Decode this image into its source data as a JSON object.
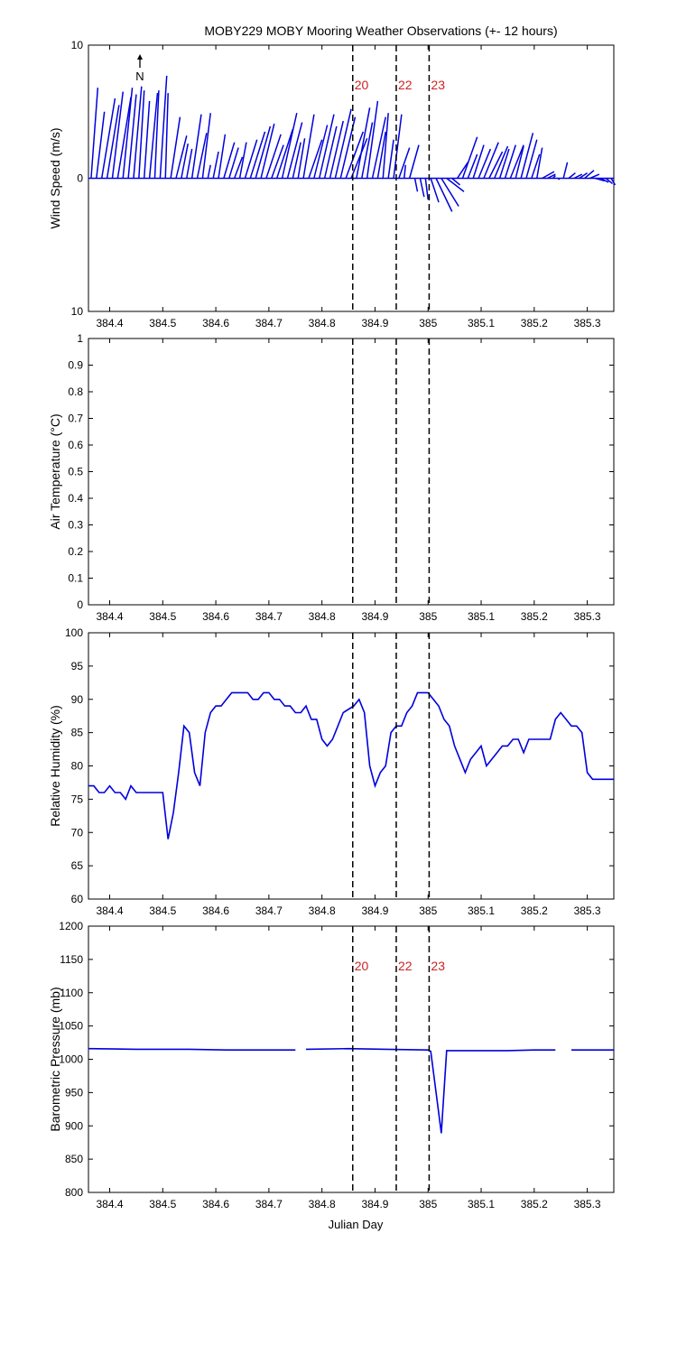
{
  "colors": {
    "series": "#0000dd",
    "event_label": "#cc2222",
    "event_line": "#000000"
  },
  "chart_data": {
    "title": "MOBY229 MOBY Mooring Weather Observations (+- 12 hours)",
    "xlabel": "Julian Day",
    "xlim": [
      384.36,
      385.35
    ],
    "xticks": [
      "384.4",
      "384.5",
      "384.6",
      "384.7",
      "384.8",
      "384.9",
      "385",
      "385.1",
      "385.2",
      "385.3"
    ],
    "xtick_values": [
      384.4,
      384.5,
      384.6,
      384.7,
      384.8,
      384.9,
      385.0,
      385.1,
      385.2,
      385.3
    ],
    "events": [
      {
        "label": "20",
        "x": 384.858
      },
      {
        "label": "22",
        "x": 384.94
      },
      {
        "label": "23",
        "x": 385.002
      }
    ],
    "panels": [
      {
        "id": "wind",
        "type": "vector",
        "ylabel": "Wind Speed (m/s)",
        "ylim": [
          -10,
          10
        ],
        "yticks": [
          "10",
          "0",
          "10"
        ],
        "ytick_values": [
          10,
          0,
          -10
        ],
        "north_label": "N",
        "show_event_labels": true,
        "vectors": [
          [
            384.365,
            0.5,
            6.8
          ],
          [
            384.375,
            0.6,
            5.0
          ],
          [
            384.385,
            1.0,
            6.0
          ],
          [
            384.395,
            0.9,
            5.5
          ],
          [
            384.405,
            0.8,
            6.5
          ],
          [
            384.415,
            1.0,
            6.1
          ],
          [
            384.425,
            0.7,
            6.8
          ],
          [
            384.435,
            0.6,
            6.3
          ],
          [
            384.445,
            0.6,
            6.9
          ],
          [
            384.455,
            0.4,
            6.6
          ],
          [
            384.465,
            0.4,
            5.8
          ],
          [
            384.475,
            0.6,
            6.4
          ],
          [
            384.485,
            0.3,
            6.6
          ],
          [
            384.495,
            0.5,
            7.7
          ],
          [
            384.505,
            0.2,
            6.4
          ],
          [
            384.515,
            0.7,
            4.6
          ],
          [
            384.525,
            0.8,
            3.2
          ],
          [
            384.535,
            0.5,
            2.6
          ],
          [
            384.545,
            0.4,
            2.2
          ],
          [
            384.555,
            0.7,
            4.8
          ],
          [
            384.565,
            0.7,
            3.4
          ],
          [
            384.575,
            0.6,
            4.9
          ],
          [
            384.585,
            0.2,
            1.0
          ],
          [
            384.595,
            0.4,
            2.0
          ],
          [
            384.605,
            0.5,
            3.3
          ],
          [
            384.615,
            0.8,
            2.7
          ],
          [
            384.625,
            0.7,
            2.3
          ],
          [
            384.635,
            0.6,
            1.6
          ],
          [
            384.645,
            0.5,
            2.7
          ],
          [
            384.655,
            0.9,
            2.9
          ],
          [
            384.665,
            1.1,
            3.5
          ],
          [
            384.675,
            1.1,
            3.9
          ],
          [
            384.685,
            1.0,
            4.1
          ],
          [
            384.695,
            1.1,
            3.3
          ],
          [
            384.705,
            0.9,
            2.5
          ],
          [
            384.715,
            1.2,
            3.7
          ],
          [
            384.725,
            1.1,
            4.9
          ],
          [
            384.735,
            1.1,
            4.2
          ],
          [
            384.745,
            0.6,
            2.7
          ],
          [
            384.755,
            0.5,
            3.0
          ],
          [
            384.765,
            0.8,
            4.8
          ],
          [
            384.775,
            1.0,
            2.9
          ],
          [
            384.785,
            1.0,
            4.0
          ],
          [
            384.795,
            1.1,
            4.8
          ],
          [
            384.805,
            0.9,
            3.9
          ],
          [
            384.815,
            1.0,
            4.3
          ],
          [
            384.825,
            1.2,
            5.2
          ],
          [
            384.835,
            1.1,
            4.6
          ],
          [
            384.845,
            1.3,
            3.5
          ],
          [
            384.855,
            1.2,
            3.0
          ],
          [
            384.865,
            1.0,
            5.3
          ],
          [
            384.875,
            0.8,
            4.2
          ],
          [
            384.885,
            0.8,
            5.8
          ],
          [
            384.895,
            1.0,
            4.6
          ],
          [
            384.905,
            0.6,
            3.5
          ],
          [
            384.915,
            0.4,
            4.9
          ],
          [
            384.925,
            0.4,
            2.9
          ],
          [
            384.935,
            0.6,
            4.8
          ],
          [
            384.945,
            0.8,
            2.3
          ],
          [
            384.955,
            0.1,
            1.0
          ],
          [
            384.965,
            0.7,
            2.5
          ],
          [
            384.975,
            0.2,
            -1.0
          ],
          [
            384.985,
            0.3,
            -1.4
          ],
          [
            384.995,
            0.2,
            -1.6
          ],
          [
            385.005,
            0.6,
            -1.8
          ],
          [
            385.015,
            1.2,
            -2.5
          ],
          [
            385.025,
            1.3,
            -2.1
          ],
          [
            385.035,
            1.3,
            -1.0
          ],
          [
            385.045,
            0.6,
            -0.5
          ],
          [
            385.055,
            0.8,
            1.2
          ],
          [
            385.065,
            1.1,
            3.1
          ],
          [
            385.075,
            0.7,
            1.8
          ],
          [
            385.085,
            0.8,
            2.5
          ],
          [
            385.095,
            0.9,
            2.2
          ],
          [
            385.105,
            1.1,
            2.7
          ],
          [
            385.115,
            1.0,
            2.0
          ],
          [
            385.125,
            1.0,
            2.4
          ],
          [
            385.135,
            0.7,
            2.2
          ],
          [
            385.145,
            0.8,
            2.5
          ],
          [
            385.155,
            1.0,
            2.5
          ],
          [
            385.165,
            0.6,
            2.4
          ],
          [
            385.175,
            0.9,
            3.4
          ],
          [
            385.185,
            0.8,
            2.9
          ],
          [
            385.195,
            0.6,
            1.8
          ],
          [
            385.205,
            0.4,
            2.3
          ],
          [
            385.215,
            0.9,
            0.5
          ],
          [
            385.225,
            0.6,
            0.3
          ],
          [
            385.235,
            0.2,
            0.2
          ],
          [
            385.245,
            0.1,
            -0.1
          ],
          [
            385.255,
            0.3,
            1.2
          ],
          [
            385.265,
            0.5,
            0.4
          ],
          [
            385.275,
            0.6,
            0.3
          ],
          [
            385.285,
            0.6,
            0.4
          ],
          [
            385.295,
            0.7,
            0.6
          ],
          [
            385.305,
            0.7,
            0.3
          ],
          [
            385.315,
            0.7,
            -0.2
          ],
          [
            385.325,
            0.6,
            -0.3
          ],
          [
            385.335,
            0.5,
            -0.4
          ],
          [
            385.345,
            0.3,
            -0.5
          ]
        ]
      },
      {
        "id": "airtemp",
        "type": "line",
        "ylabel": "Air Temperature (°C)",
        "ylim": [
          0,
          1
        ],
        "yticks": [
          "0",
          "0.1",
          "0.2",
          "0.3",
          "0.4",
          "0.5",
          "0.6",
          "0.7",
          "0.8",
          "0.9",
          "1"
        ],
        "ytick_values": [
          0,
          0.1,
          0.2,
          0.3,
          0.4,
          0.5,
          0.6,
          0.7,
          0.8,
          0.9,
          1.0
        ],
        "show_event_labels": false,
        "segments": []
      },
      {
        "id": "rh",
        "type": "line",
        "ylabel": "Relative Humidity (%)",
        "ylim": [
          60,
          100
        ],
        "yticks": [
          "60",
          "65",
          "70",
          "75",
          "80",
          "85",
          "90",
          "95",
          "100"
        ],
        "ytick_values": [
          60,
          65,
          70,
          75,
          80,
          85,
          90,
          95,
          100
        ],
        "show_event_labels": false,
        "segments": [
          [
            [
              384.36,
              77
            ],
            [
              384.37,
              77
            ],
            [
              384.38,
              76
            ],
            [
              384.39,
              76
            ],
            [
              384.4,
              77
            ],
            [
              384.41,
              76
            ],
            [
              384.42,
              76
            ],
            [
              384.43,
              75
            ],
            [
              384.44,
              77
            ],
            [
              384.45,
              76
            ],
            [
              384.46,
              76
            ],
            [
              384.47,
              76
            ],
            [
              384.48,
              76
            ],
            [
              384.49,
              76
            ],
            [
              384.5,
              76
            ],
            [
              384.51,
              69
            ],
            [
              384.52,
              73
            ],
            [
              384.53,
              79
            ],
            [
              384.54,
              86
            ],
            [
              384.55,
              85
            ],
            [
              384.56,
              79
            ],
            [
              384.57,
              77
            ],
            [
              384.58,
              85
            ],
            [
              384.59,
              88
            ],
            [
              384.6,
              89
            ],
            [
              384.61,
              89
            ],
            [
              384.62,
              90
            ],
            [
              384.63,
              91
            ],
            [
              384.64,
              91
            ],
            [
              384.65,
              91
            ],
            [
              384.66,
              91
            ],
            [
              384.67,
              90
            ],
            [
              384.68,
              90
            ],
            [
              384.69,
              91
            ],
            [
              384.7,
              91
            ],
            [
              384.71,
              90
            ],
            [
              384.72,
              90
            ],
            [
              384.73,
              89
            ],
            [
              384.74,
              89
            ],
            [
              384.75,
              88
            ],
            [
              384.76,
              88
            ],
            [
              384.77,
              89
            ],
            [
              384.78,
              87
            ],
            [
              384.79,
              87
            ],
            [
              384.8,
              84
            ],
            [
              384.81,
              83
            ],
            [
              384.82,
              84
            ],
            [
              384.83,
              86
            ],
            [
              384.84,
              88
            ],
            [
              384.86,
              89
            ],
            [
              384.87,
              90
            ],
            [
              384.88,
              88
            ],
            [
              384.89,
              80
            ],
            [
              384.9,
              77
            ],
            [
              384.91,
              79
            ],
            [
              384.92,
              80
            ],
            [
              384.93,
              85
            ],
            [
              384.94,
              86
            ],
            [
              384.95,
              86
            ],
            [
              384.96,
              88
            ],
            [
              384.97,
              89
            ],
            [
              384.98,
              91
            ],
            [
              384.99,
              91
            ],
            [
              385.0,
              91
            ],
            [
              385.01,
              90
            ],
            [
              385.02,
              89
            ],
            [
              385.03,
              87
            ],
            [
              385.04,
              86
            ],
            [
              385.05,
              83
            ],
            [
              385.06,
              81
            ],
            [
              385.07,
              79
            ],
            [
              385.08,
              81
            ],
            [
              385.09,
              82
            ],
            [
              385.1,
              83
            ],
            [
              385.11,
              80
            ],
            [
              385.12,
              81
            ],
            [
              385.13,
              82
            ],
            [
              385.14,
              83
            ],
            [
              385.15,
              83
            ],
            [
              385.16,
              84
            ],
            [
              385.17,
              84
            ],
            [
              385.18,
              82
            ],
            [
              385.19,
              84
            ],
            [
              385.2,
              84
            ],
            [
              385.21,
              84
            ],
            [
              385.22,
              84
            ],
            [
              385.23,
              84
            ],
            [
              385.24,
              87
            ],
            [
              385.25,
              88
            ],
            [
              385.26,
              87
            ],
            [
              385.27,
              86
            ],
            [
              385.28,
              86
            ],
            [
              385.29,
              85
            ],
            [
              385.3,
              79
            ],
            [
              385.31,
              78
            ],
            [
              385.35,
              78
            ]
          ]
        ]
      },
      {
        "id": "pressure",
        "type": "line",
        "ylabel": "Barometric Pressure (mb)",
        "ylim": [
          800,
          1200
        ],
        "yticks": [
          "800",
          "850",
          "900",
          "950",
          "1000",
          "1050",
          "1100",
          "1150",
          "1200"
        ],
        "ytick_values": [
          800,
          850,
          900,
          950,
          1000,
          1050,
          1100,
          1150,
          1200
        ],
        "show_event_labels": true,
        "segments": [
          [
            [
              384.36,
              1016
            ],
            [
              384.45,
              1015
            ],
            [
              384.55,
              1015
            ],
            [
              384.62,
              1014
            ],
            [
              384.68,
              1014
            ],
            [
              384.75,
              1014
            ]
          ],
          [
            [
              384.77,
              1015
            ],
            [
              384.85,
              1016
            ],
            [
              384.92,
              1015
            ],
            [
              385.0,
              1014
            ],
            [
              385.005,
              1012
            ],
            [
              385.025,
              889
            ],
            [
              385.035,
              1013
            ],
            [
              385.08,
              1013
            ],
            [
              385.15,
              1013
            ],
            [
              385.2,
              1014
            ],
            [
              385.24,
              1014
            ]
          ],
          [
            [
              385.27,
              1014
            ],
            [
              385.35,
              1014
            ]
          ]
        ]
      }
    ]
  }
}
